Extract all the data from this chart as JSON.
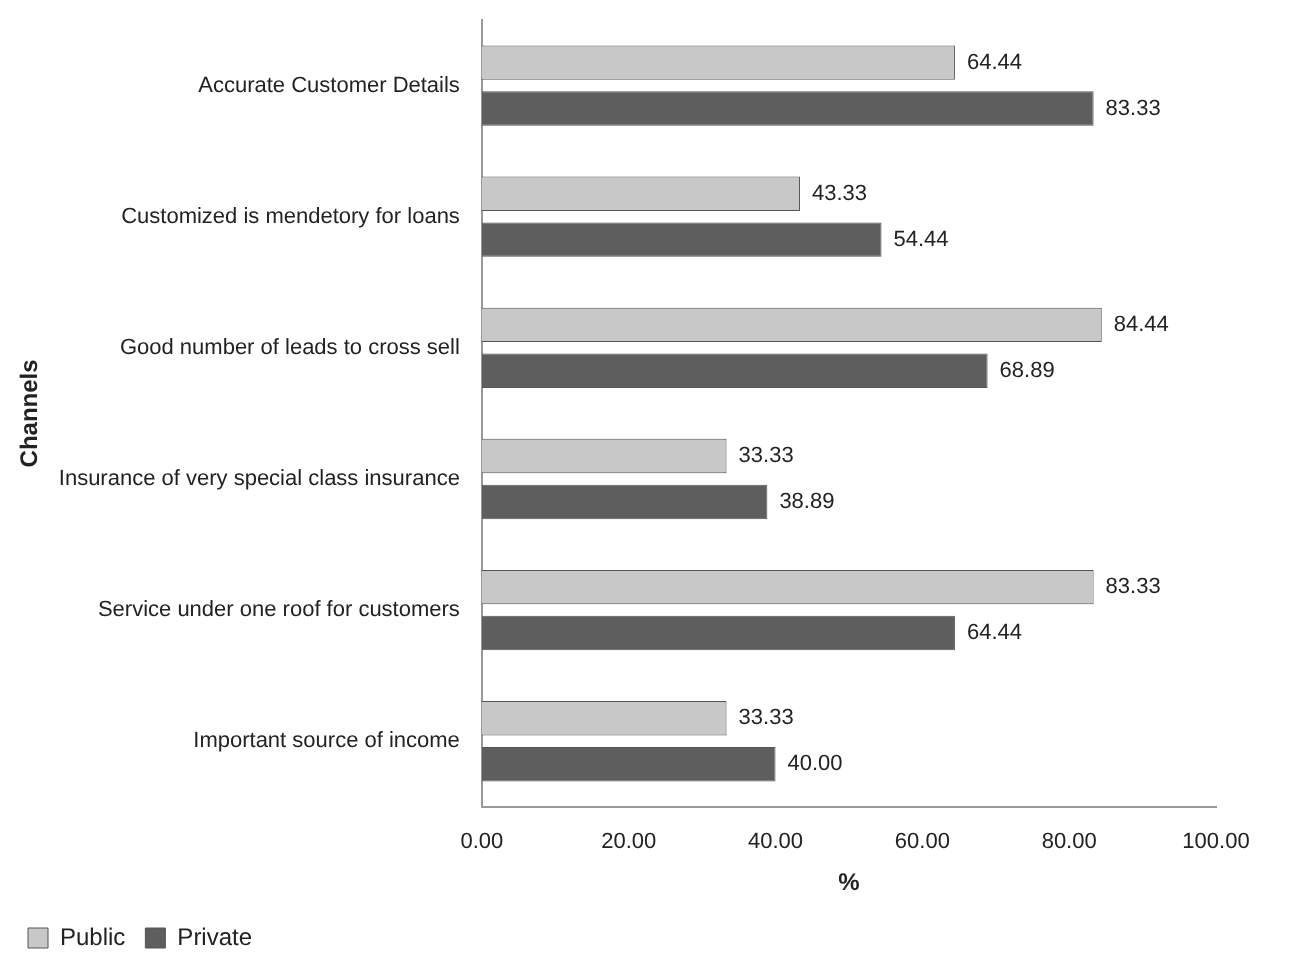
{
  "chart_data": {
    "type": "bar",
    "orientation": "horizontal",
    "xlabel": "%",
    "ylabel": "Channels",
    "categories": [
      "Accurate Customer Details",
      "Customized is mendetory for loans",
      "Good number of leads to cross sell",
      "Insurance of very special class insurance",
      "Service under one roof for customers",
      "Important source of income"
    ],
    "series": [
      {
        "name": "Public",
        "color": "#c8c8c8",
        "values": [
          64.44,
          43.33,
          84.44,
          33.33,
          83.33,
          33.33
        ],
        "value_labels": [
          "64.44",
          "43.33",
          "84.44",
          "33.33",
          "83.33",
          "33.33"
        ]
      },
      {
        "name": "Private",
        "color": "#5e5e5e",
        "values": [
          83.33,
          54.44,
          68.89,
          38.89,
          64.44,
          40
        ],
        "value_labels": [
          "83.33",
          "54.44",
          "68.89",
          "38.89",
          "64.44",
          "40.00"
        ]
      }
    ],
    "xlim": [
      0,
      100
    ],
    "xticks": [
      {
        "value": 0,
        "label": "0.00"
      },
      {
        "value": 20,
        "label": "20.00"
      },
      {
        "value": 40,
        "label": "40.00"
      },
      {
        "value": 60,
        "label": "60.00"
      },
      {
        "value": 80,
        "label": "80.00"
      },
      {
        "value": 100,
        "label": "100.00"
      }
    ],
    "grid": false,
    "legend": "bottom left"
  }
}
